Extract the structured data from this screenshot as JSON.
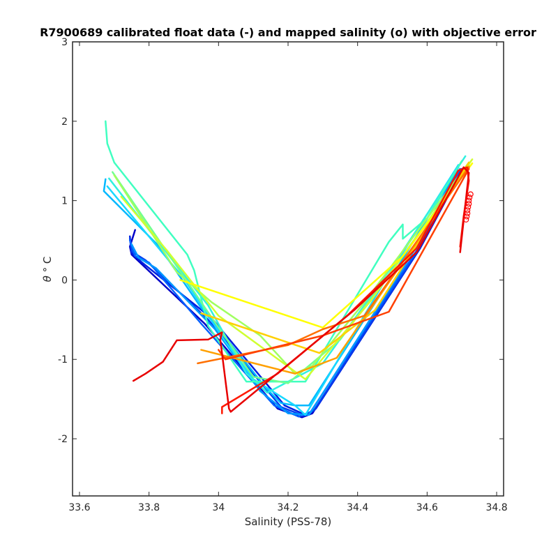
{
  "chart_data": {
    "type": "line",
    "title": "R7900689 calibrated float data (-) and mapped salinity (o) with objective error",
    "xlabel": "Salinity (PSS-78)",
    "ylabel_symbol": "θ",
    "ylabel_unit": "° C",
    "xlim": [
      33.58,
      34.82
    ],
    "ylim": [
      -2.72,
      3.0
    ],
    "xticks": [
      33.6,
      33.8,
      34.0,
      34.2,
      34.4,
      34.6,
      34.8
    ],
    "xtick_labels": [
      "33.6",
      "33.8",
      "34",
      "34.2",
      "34.4",
      "34.6",
      "34.8"
    ],
    "yticks": [
      -2,
      -1,
      0,
      1,
      2,
      3
    ],
    "ytick_labels": [
      "-2",
      "-1",
      "0",
      "1",
      "2",
      "3"
    ],
    "grid": false,
    "series": [
      {
        "color": "#0000c8",
        "points": [
          [
            33.76,
            0.63
          ],
          [
            33.745,
            0.42
          ],
          [
            33.75,
            0.32
          ],
          [
            33.96,
            -0.55
          ],
          [
            34.17,
            -1.62
          ],
          [
            34.24,
            -1.73
          ],
          [
            34.27,
            -1.68
          ],
          [
            34.57,
            0.35
          ],
          [
            34.65,
            1.0
          ],
          [
            34.69,
            1.35
          ],
          [
            34.71,
            1.42
          ]
        ]
      },
      {
        "color": "#0020e0",
        "points": [
          [
            33.745,
            0.55
          ],
          [
            33.75,
            0.34
          ],
          [
            33.78,
            0.22
          ],
          [
            33.98,
            -0.48
          ],
          [
            34.19,
            -1.58
          ],
          [
            34.25,
            -1.7
          ],
          [
            34.28,
            -1.62
          ],
          [
            34.58,
            0.4
          ],
          [
            34.7,
            1.38
          ]
        ]
      },
      {
        "color": "#0040f0",
        "points": [
          [
            33.745,
            0.52
          ],
          [
            33.75,
            0.36
          ],
          [
            33.79,
            0.25
          ],
          [
            33.97,
            -0.5
          ],
          [
            34.18,
            -1.6
          ],
          [
            34.245,
            -1.71
          ],
          [
            34.275,
            -1.64
          ],
          [
            34.575,
            0.38
          ],
          [
            34.7,
            1.4
          ]
        ]
      },
      {
        "color": "#0060ff",
        "points": [
          [
            33.745,
            0.5
          ],
          [
            33.76,
            0.3
          ],
          [
            33.8,
            0.22
          ],
          [
            33.95,
            -0.55
          ],
          [
            34.16,
            -1.58
          ],
          [
            34.23,
            -1.72
          ],
          [
            34.265,
            -1.66
          ],
          [
            34.57,
            0.37
          ],
          [
            34.695,
            1.4
          ]
        ]
      },
      {
        "color": "#0098ff",
        "points": [
          [
            33.75,
            0.45
          ],
          [
            33.77,
            0.28
          ],
          [
            33.82,
            0.15
          ],
          [
            33.99,
            -0.62
          ],
          [
            34.12,
            -1.4
          ],
          [
            34.2,
            -1.68
          ],
          [
            34.26,
            -1.7
          ],
          [
            34.56,
            0.35
          ],
          [
            34.69,
            1.42
          ]
        ]
      },
      {
        "color": "#00b8ff",
        "points": [
          [
            33.675,
            1.27
          ],
          [
            33.67,
            1.12
          ],
          [
            33.83,
            0.42
          ],
          [
            33.95,
            -0.35
          ],
          [
            34.08,
            -1.05
          ],
          [
            34.14,
            -1.38
          ],
          [
            34.18,
            -1.55
          ],
          [
            34.22,
            -1.58
          ],
          [
            34.26,
            -1.58
          ],
          [
            34.5,
            0.05
          ],
          [
            34.68,
            1.35
          ]
        ]
      },
      {
        "color": "#18d8ff",
        "points": [
          [
            33.68,
            1.18
          ],
          [
            33.9,
            0.02
          ],
          [
            34.02,
            -0.78
          ],
          [
            34.1,
            -1.25
          ],
          [
            34.22,
            -1.58
          ],
          [
            34.25,
            -1.7
          ],
          [
            34.48,
            0.0
          ],
          [
            34.69,
            1.45
          ]
        ]
      },
      {
        "color": "#30f0e0",
        "points": [
          [
            33.685,
            1.28
          ],
          [
            33.88,
            0.18
          ],
          [
            33.97,
            -0.32
          ],
          [
            34.08,
            -1.18
          ],
          [
            34.14,
            -1.42
          ],
          [
            34.3,
            -1.05
          ],
          [
            34.52,
            0.3
          ],
          [
            34.71,
            1.56
          ]
        ]
      },
      {
        "color": "#40ffc0",
        "points": [
          [
            33.675,
            2.0
          ],
          [
            33.68,
            1.72
          ],
          [
            33.7,
            1.48
          ],
          [
            33.91,
            0.32
          ],
          [
            33.93,
            0.12
          ],
          [
            33.97,
            -0.58
          ],
          [
            34.08,
            -1.28
          ],
          [
            34.25,
            -1.28
          ],
          [
            34.49,
            0.48
          ],
          [
            34.53,
            0.7
          ],
          [
            34.53,
            0.52
          ],
          [
            34.6,
            0.78
          ],
          [
            34.7,
            1.5
          ]
        ]
      },
      {
        "color": "#70ff90",
        "points": [
          [
            33.695,
            1.36
          ],
          [
            33.86,
            0.3
          ],
          [
            34.0,
            -0.6
          ],
          [
            34.1,
            -1.22
          ],
          [
            34.2,
            -1.3
          ],
          [
            34.35,
            -0.75
          ],
          [
            34.52,
            0.25
          ],
          [
            34.72,
            1.45
          ]
        ]
      },
      {
        "color": "#a0ff60",
        "points": [
          [
            33.7,
            1.32
          ],
          [
            33.88,
            0.1
          ],
          [
            33.98,
            -0.28
          ],
          [
            34.12,
            -0.7
          ],
          [
            34.22,
            -1.18
          ],
          [
            34.27,
            -1.08
          ],
          [
            34.42,
            -0.28
          ],
          [
            34.72,
            1.48
          ]
        ]
      },
      {
        "color": "#d0ff30",
        "points": [
          [
            33.72,
            1.05
          ],
          [
            33.85,
            0.38
          ],
          [
            34.0,
            -0.45
          ],
          [
            34.25,
            -1.25
          ],
          [
            34.44,
            -0.25
          ],
          [
            34.73,
            1.52
          ]
        ]
      },
      {
        "color": "#ffff00",
        "points": [
          [
            33.89,
            0.0
          ],
          [
            34.3,
            -0.6
          ],
          [
            34.53,
            0.3
          ],
          [
            34.73,
            1.47
          ]
        ]
      },
      {
        "color": "#ffd000",
        "points": [
          [
            33.95,
            -0.42
          ],
          [
            34.29,
            -0.92
          ],
          [
            34.45,
            -0.38
          ],
          [
            34.72,
            1.48
          ]
        ]
      },
      {
        "color": "#ffa000",
        "points": [
          [
            33.95,
            -0.88
          ],
          [
            34.22,
            -1.18
          ],
          [
            34.34,
            -0.98
          ],
          [
            34.72,
            1.43
          ]
        ]
      },
      {
        "color": "#ff7000",
        "points": [
          [
            33.94,
            -1.05
          ],
          [
            34.2,
            -0.82
          ],
          [
            34.3,
            -0.62
          ],
          [
            34.42,
            -0.45
          ],
          [
            34.72,
            1.42
          ]
        ]
      },
      {
        "color": "#ff4000",
        "points": [
          [
            34.0,
            -0.88
          ],
          [
            34.02,
            -1.0
          ],
          [
            34.3,
            -0.7
          ],
          [
            34.49,
            -0.4
          ],
          [
            34.72,
            1.4
          ]
        ]
      },
      {
        "color": "#ff1800",
        "points": [
          [
            34.01,
            -1.68
          ],
          [
            34.01,
            -1.6
          ],
          [
            34.17,
            -1.18
          ],
          [
            34.37,
            -0.45
          ],
          [
            34.57,
            0.4
          ],
          [
            34.69,
            1.38
          ],
          [
            34.715,
            1.42
          ],
          [
            34.72,
            1.25
          ],
          [
            34.705,
            0.8
          ],
          [
            34.695,
            0.42
          ]
        ]
      },
      {
        "color": "#e80000",
        "points": [
          [
            33.755,
            -1.27
          ],
          [
            33.79,
            -1.18
          ],
          [
            33.84,
            -1.03
          ],
          [
            33.88,
            -0.76
          ],
          [
            33.97,
            -0.75
          ],
          [
            34.01,
            -0.66
          ],
          [
            34.005,
            -0.75
          ],
          [
            34.03,
            -1.62
          ],
          [
            34.035,
            -1.66
          ],
          [
            34.39,
            -0.38
          ],
          [
            34.57,
            0.35
          ],
          [
            34.705,
            1.42
          ],
          [
            34.72,
            1.35
          ],
          [
            34.695,
            0.35
          ]
        ]
      }
    ],
    "mapped_markers": {
      "color": "#ff0000",
      "shape": "o",
      "points": [
        [
          34.725,
          1.08
        ],
        [
          34.722,
          1.04
        ],
        [
          34.72,
          1.0
        ],
        [
          34.72,
          0.96
        ],
        [
          34.718,
          0.92
        ],
        [
          34.716,
          0.88
        ],
        [
          34.716,
          0.84
        ],
        [
          34.714,
          0.8
        ],
        [
          34.712,
          0.76
        ]
      ]
    },
    "axis_color": "#262626",
    "background": "#ffffff"
  }
}
